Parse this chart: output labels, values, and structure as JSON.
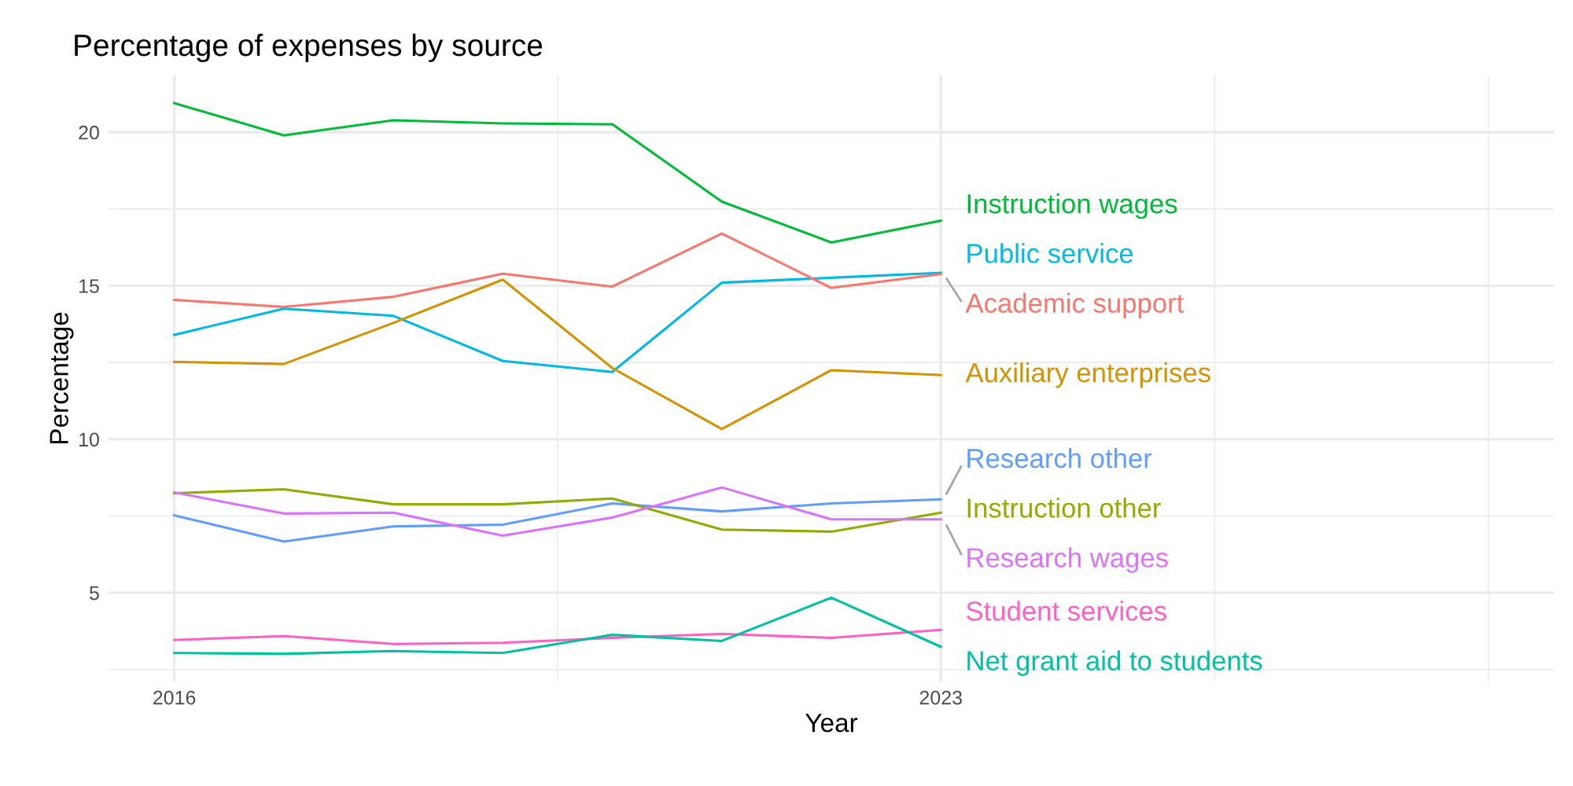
{
  "chart_data": {
    "type": "line",
    "title": "Percentage of expenses by source",
    "xlabel": "Year",
    "ylabel": "Percentage",
    "x": [
      2016,
      2017,
      2018,
      2019,
      2020,
      2021,
      2022,
      2023
    ],
    "series": [
      {
        "name": "Instruction wages",
        "color": "#00ba38",
        "values": [
          20.95,
          19.9,
          20.39,
          20.29,
          20.26,
          17.74,
          16.41,
          17.12
        ]
      },
      {
        "name": "Public service",
        "color": "#00b9e3",
        "values": [
          13.4,
          14.25,
          14.02,
          12.55,
          12.19,
          15.1,
          15.26,
          15.42
        ]
      },
      {
        "name": "Academic support",
        "color": "#f8766d",
        "values": [
          14.54,
          14.31,
          14.64,
          15.39,
          14.97,
          16.7,
          14.93,
          15.38
        ]
      },
      {
        "name": "Auxiliary enterprises",
        "color": "#d39200",
        "values": [
          12.52,
          12.45,
          13.79,
          15.2,
          12.32,
          10.33,
          12.25,
          12.09
        ]
      },
      {
        "name": "Research other",
        "color": "#619cff",
        "values": [
          7.52,
          6.67,
          7.16,
          7.22,
          7.91,
          7.65,
          7.91,
          8.04
        ]
      },
      {
        "name": "Instruction other",
        "color": "#93aa00",
        "values": [
          8.24,
          8.37,
          7.88,
          7.88,
          8.07,
          7.06,
          6.99,
          7.61
        ]
      },
      {
        "name": "Research wages",
        "color": "#db72fb",
        "values": [
          8.27,
          7.58,
          7.61,
          6.86,
          7.45,
          8.43,
          7.39,
          7.39
        ]
      },
      {
        "name": "Student services",
        "color": "#ff61c3",
        "values": [
          3.46,
          3.59,
          3.33,
          3.37,
          3.53,
          3.66,
          3.53,
          3.79
        ]
      },
      {
        "name": "Net grant aid to students",
        "color": "#00c19f",
        "values": [
          3.04,
          3.01,
          3.1,
          3.04,
          3.63,
          3.43,
          4.84,
          3.24
        ]
      }
    ],
    "xlim": [
      2015.4,
      2028.6
    ],
    "ylim": [
      2.11,
      21.85
    ],
    "xticks": [
      2016,
      {
        "value": 2019.5,
        "label": null
      },
      2023,
      {
        "value": 2025.5,
        "label": null
      },
      {
        "value": 2028,
        "label": null
      }
    ],
    "yticks": [
      {
        "value": 2.5,
        "label": null
      },
      5,
      {
        "value": 7.5,
        "label": null
      },
      10,
      {
        "value": 12.5,
        "label": null
      },
      15,
      {
        "value": 17.5,
        "label": null
      },
      20
    ],
    "grid": true,
    "legend": false,
    "marker": "none",
    "line_style": "solid"
  }
}
